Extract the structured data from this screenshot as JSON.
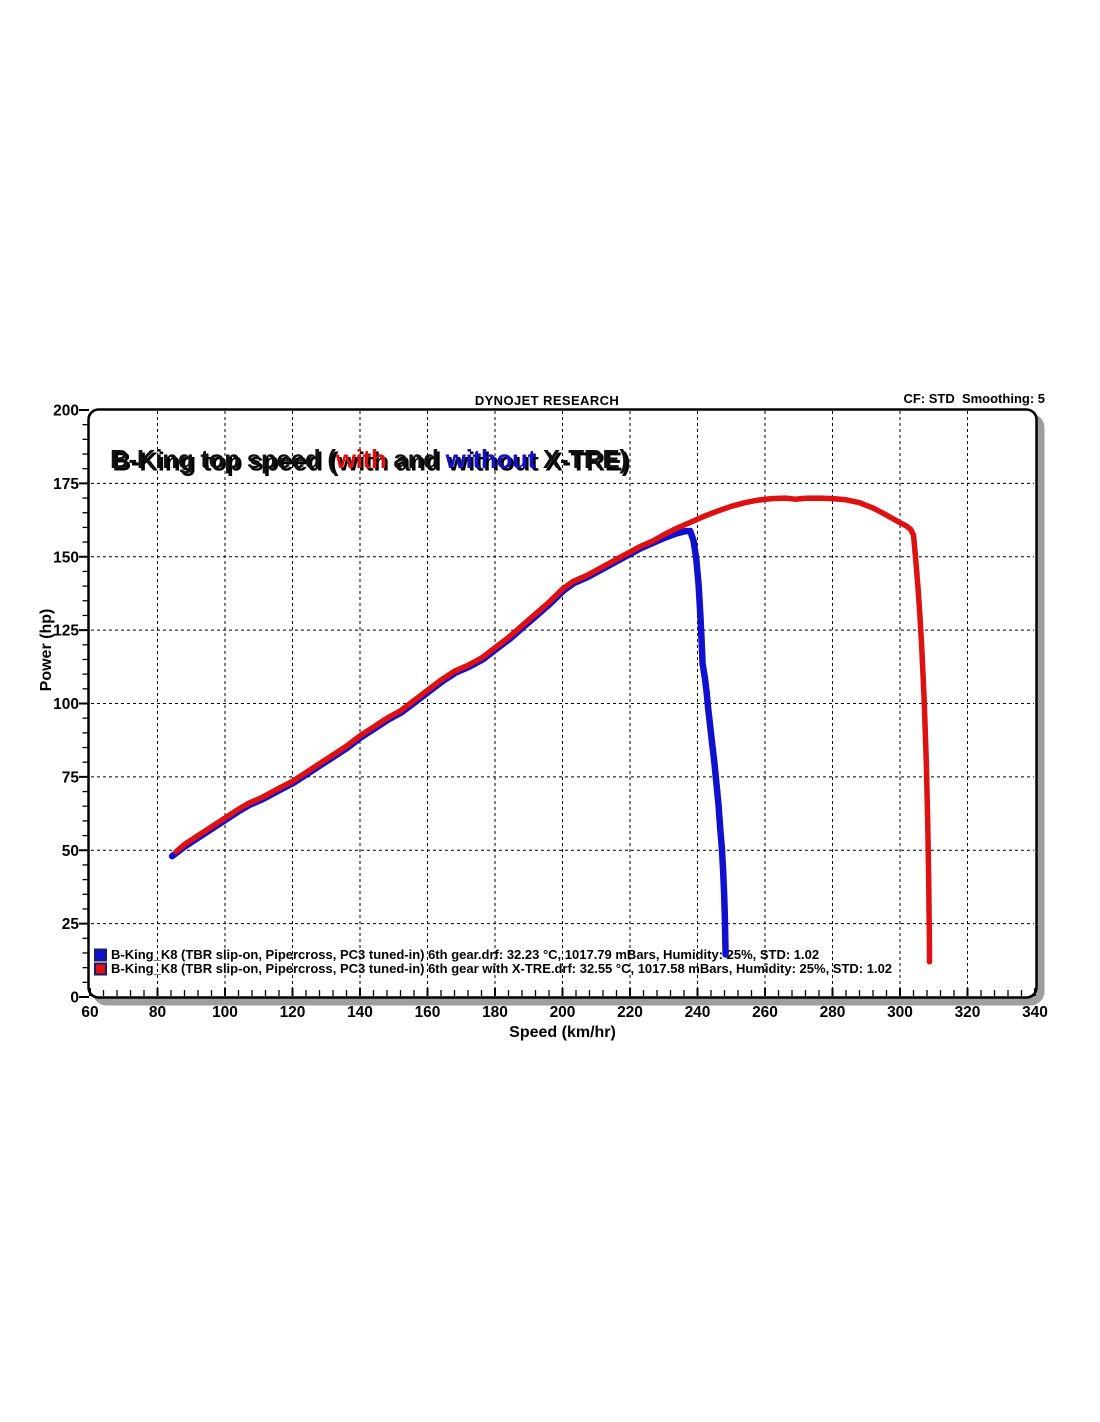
{
  "header": {
    "brand": "DYNOJET RESEARCH",
    "settings": "CF: STD  Smoothing: 5"
  },
  "title_segments": [
    {
      "text": "B-King top speed (",
      "color": "#111111"
    },
    {
      "text": "with",
      "color": "#dd1111"
    },
    {
      "text": " and ",
      "color": "#111111"
    },
    {
      "text": "without",
      "color": "#1111cd"
    },
    {
      "text": " X-TRE)",
      "color": "#111111"
    }
  ],
  "legend": [
    {
      "color": "#1111cd",
      "label": "B-King_K8 (TBR slip-on, Pipercross, PC3 tuned-in) 6th gear.drf: 32.23 °C, 1017.79 mBars, Humidity: 25%, STD: 1.02"
    },
    {
      "color": "#dd1111",
      "label": "B-King_K8 (TBR slip-on, Pipercross, PC3 tuned-in) 6th gear with X-TRE.drf: 32.55 °C, 1017.58 mBars, Humidity: 25%, STD: 1.02"
    }
  ],
  "chart_data": {
    "type": "line",
    "title": "B-King top speed (with and without X-TRE)",
    "xlabel": "Speed (km/hr)",
    "ylabel": "Power (hp)",
    "xlim": [
      60,
      340
    ],
    "ylim": [
      0,
      200
    ],
    "x_major_step": 20,
    "x_minor_step": 4,
    "y_major_step": 25,
    "y_minor_step": 5,
    "grid": "dashed major gridlines",
    "legend_position": "bottom-left inside plot",
    "series": [
      {
        "name": "B-King_K8 6th gear (without X-TRE)",
        "color": "#1111cd",
        "points": [
          [
            84,
            48.5
          ],
          [
            88,
            52
          ],
          [
            92,
            55
          ],
          [
            96,
            58
          ],
          [
            100,
            61
          ],
          [
            104,
            64
          ],
          [
            107,
            66
          ],
          [
            111,
            68
          ],
          [
            115,
            70.5
          ],
          [
            120,
            73.5
          ],
          [
            124,
            76.5
          ],
          [
            128,
            79.5
          ],
          [
            132,
            82.5
          ],
          [
            136,
            85.5
          ],
          [
            140,
            89
          ],
          [
            144,
            92
          ],
          [
            148,
            95
          ],
          [
            152,
            97.5
          ],
          [
            156,
            101
          ],
          [
            160,
            104.5
          ],
          [
            164,
            108
          ],
          [
            168,
            111
          ],
          [
            172,
            113
          ],
          [
            176,
            115.5
          ],
          [
            180,
            119
          ],
          [
            184,
            122.5
          ],
          [
            188,
            126.5
          ],
          [
            192,
            130.5
          ],
          [
            196,
            134.5
          ],
          [
            200,
            139
          ],
          [
            203,
            141.5
          ],
          [
            207,
            143.5
          ],
          [
            211,
            146
          ],
          [
            215,
            148.5
          ],
          [
            219,
            151
          ],
          [
            223,
            153.5
          ],
          [
            227,
            155.5
          ],
          [
            230,
            157
          ],
          [
            233,
            158.3
          ],
          [
            236,
            159.2
          ],
          [
            237.5,
            159.3
          ],
          [
            238.5,
            156
          ],
          [
            239.3,
            150
          ],
          [
            240,
            141
          ],
          [
            240.5,
            131
          ],
          [
            240.9,
            122
          ],
          [
            241.2,
            114
          ],
          [
            241.9,
            109
          ],
          [
            242.4,
            104
          ],
          [
            242.8,
            99
          ],
          [
            243.4,
            93
          ],
          [
            244,
            87
          ],
          [
            244.7,
            80
          ],
          [
            245.3,
            73
          ],
          [
            245.9,
            66
          ],
          [
            246.4,
            58
          ],
          [
            246.9,
            51
          ],
          [
            247.3,
            43
          ],
          [
            247.6,
            35
          ],
          [
            247.8,
            27
          ],
          [
            248,
            15
          ]
        ]
      },
      {
        "name": "B-King_K8 6th gear with X-TRE",
        "color": "#dd1111",
        "points": [
          [
            85.5,
            49.5
          ],
          [
            88,
            52
          ],
          [
            92,
            55
          ],
          [
            96,
            58
          ],
          [
            100,
            61
          ],
          [
            104,
            64
          ],
          [
            107,
            66
          ],
          [
            111,
            68
          ],
          [
            115,
            70.5
          ],
          [
            120,
            73.5
          ],
          [
            124,
            76.5
          ],
          [
            128,
            79.5
          ],
          [
            132,
            82.5
          ],
          [
            136,
            85.5
          ],
          [
            140,
            89
          ],
          [
            144,
            92
          ],
          [
            148,
            95
          ],
          [
            152,
            97.5
          ],
          [
            156,
            101
          ],
          [
            160,
            104.5
          ],
          [
            164,
            108
          ],
          [
            168,
            111
          ],
          [
            172,
            113
          ],
          [
            176,
            115.5
          ],
          [
            180,
            119
          ],
          [
            184,
            122.5
          ],
          [
            188,
            126.5
          ],
          [
            192,
            130.5
          ],
          [
            196,
            134.5
          ],
          [
            200,
            139
          ],
          [
            203,
            141.5
          ],
          [
            207,
            143.5
          ],
          [
            211,
            146
          ],
          [
            215,
            148.5
          ],
          [
            219,
            151
          ],
          [
            223,
            153.5
          ],
          [
            227,
            155.5
          ],
          [
            230,
            157.5
          ],
          [
            234,
            159.8
          ],
          [
            238,
            161.8
          ],
          [
            242,
            163.8
          ],
          [
            246,
            165.6
          ],
          [
            250,
            167.2
          ],
          [
            254,
            168.4
          ],
          [
            258,
            169.3
          ],
          [
            262,
            169.8
          ],
          [
            266,
            170
          ],
          [
            269,
            169.6
          ],
          [
            272,
            169.9
          ],
          [
            276,
            170
          ],
          [
            280,
            169.8
          ],
          [
            284,
            169.4
          ],
          [
            288,
            168.4
          ],
          [
            292,
            166.6
          ],
          [
            296,
            164.2
          ],
          [
            300,
            161.6
          ],
          [
            302,
            160.4
          ],
          [
            303.2,
            159.3
          ],
          [
            304,
            157.4
          ],
          [
            304.6,
            150
          ],
          [
            305.3,
            140
          ],
          [
            305.9,
            130
          ],
          [
            306.4,
            120
          ],
          [
            306.8,
            110
          ],
          [
            307.2,
            100
          ],
          [
            307.5,
            90
          ],
          [
            307.8,
            80
          ],
          [
            308,
            70
          ],
          [
            308.2,
            60
          ],
          [
            308.35,
            50
          ],
          [
            308.5,
            40
          ],
          [
            308.6,
            30
          ],
          [
            308.7,
            20
          ],
          [
            308.75,
            12
          ]
        ]
      }
    ]
  },
  "colors": {
    "frame": "#000000",
    "frame_shadow": "#9e9e9e",
    "grid": "#000000",
    "title_shadow": "#bdbdbd",
    "legend_swatch_border": "#1c1c66",
    "background": "#ffffff"
  }
}
